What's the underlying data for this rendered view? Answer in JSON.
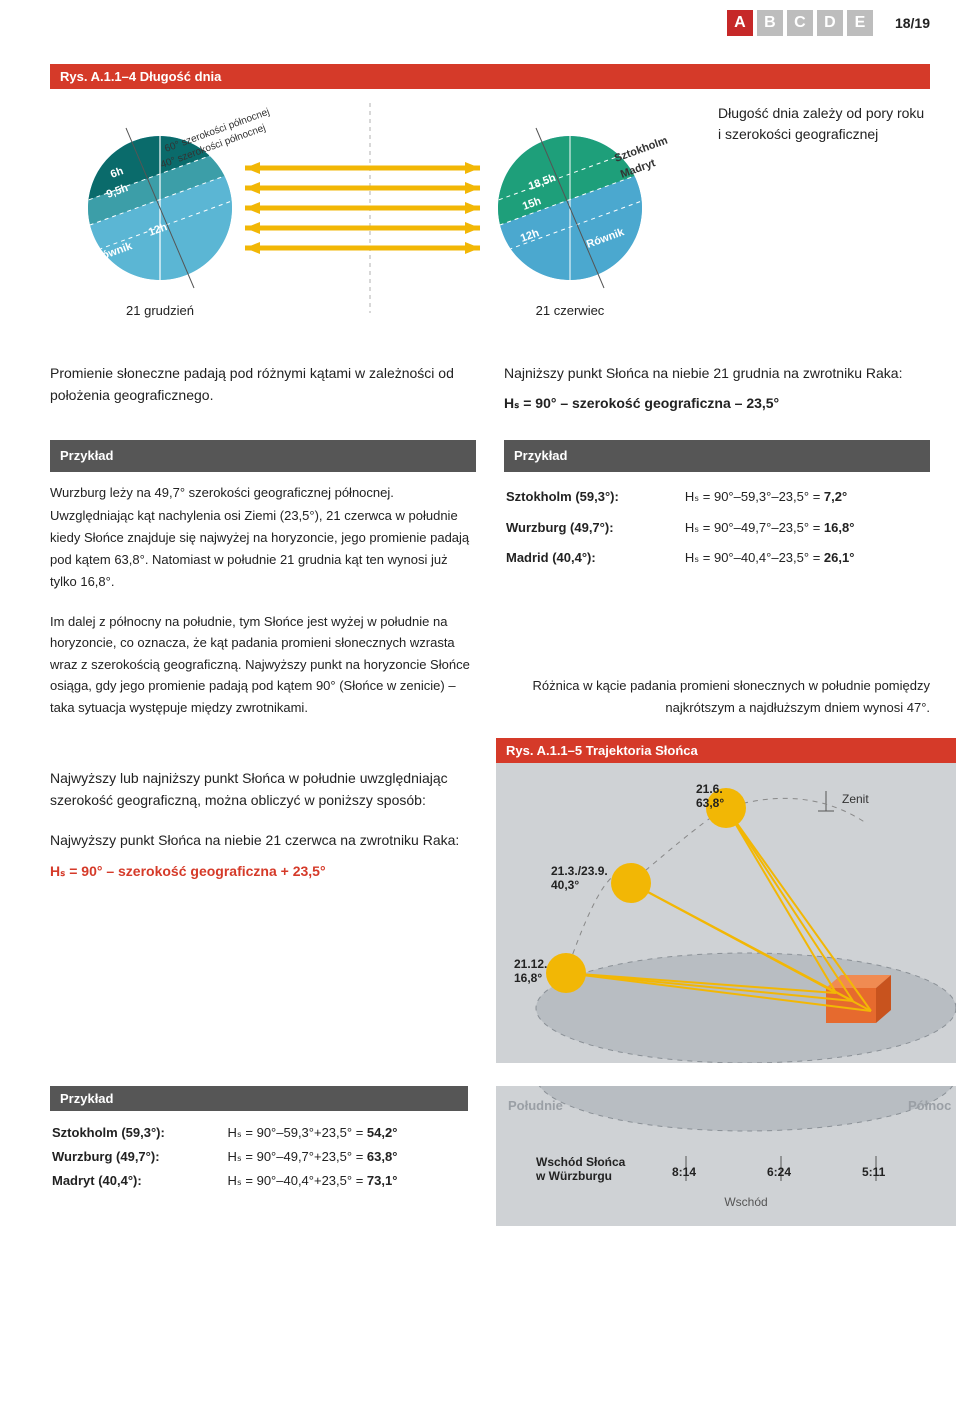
{
  "page": {
    "number": "18/19"
  },
  "tabs": {
    "items": [
      "A",
      "B",
      "C",
      "D",
      "E"
    ],
    "active_bg": "#c62828",
    "inactive_bg": "#bdbdbd"
  },
  "fig1": {
    "header": "Rys. A.1.1–4   Długość dnia",
    "header_bg": "#d53a29",
    "side_text": "Długość dnia zależy od pory roku i szerokości geograficznej",
    "globe_colors": {
      "dark": "#0a6b6b",
      "mid": "#3c9ea8",
      "light": "#5bb6d4",
      "right_top": "#1e9f7a",
      "right_bot": "#4ba8cf"
    },
    "arrow_color": "#f2b705",
    "dash_color": "#b0b0b0",
    "left_globe": {
      "lat1_label": "60° szerokości północnej",
      "lat2_label": "40° szerokości północnej",
      "h1": "6h",
      "h2": "9,5h",
      "h3": "12h",
      "equator": "Równik"
    },
    "right_globe": {
      "city1": "Sztokholm",
      "city2": "Madryt",
      "h1": "18,5h",
      "h2": "15h",
      "h3": "12h",
      "equator": "Równik"
    },
    "caption_left": "21 grudzień",
    "caption_right": "21 czerwiec"
  },
  "intro": {
    "left": "Promienie słoneczne padają pod różnymi kątami w zależności od położenia geograficznego.",
    "right_line1": "Najniższy punkt Słońca na niebie 21 grudnia na zwrotniku Raka:",
    "right_formula": "Hₛ = 90° – szerokość geograficzna – 23,5°"
  },
  "example1": {
    "header": "Przykład",
    "text": "Wurzburg leży na 49,7° szerokości geograficznej północnej. Uwzględniając kąt nachylenia osi Ziemi (23,5°), 21 czerwca w południe kiedy Słońce znajduje się najwyżej na horyzoncie, jego promienie padają pod kątem 63,8°. Natomiast w południe 21 grudnia kąt ten wynosi już tylko 16,8°."
  },
  "example2": {
    "header": "Przykład",
    "rows": [
      {
        "city": "Sztokholm (59,3°):",
        "calc": "Hₛ = 90°–59,3°–23,5° = 7,2°"
      },
      {
        "city": "Wurzburg (49,7°):",
        "calc": "Hₛ = 90°–49,7°–23,5° = 16,8°"
      },
      {
        "city": "Madrid (40,4°):",
        "calc": "Hₛ = 90°–40,4°–23,5° = 26,1°"
      }
    ]
  },
  "followup": {
    "left": "Im dalej z północny na południe, tym Słońce jest wyżej w południe na horyzoncie, co oznacza, że kąt padania promieni słonecznych wzrasta wraz z szerokością geograficzną. Najwyższy punkt na horyzoncie Słońce osiąga, gdy jego promienie padają pod kątem 90° (Słońce w zenicie) – taka sytuacja występuje między zwrotnikami.",
    "right": "Różnica w kącie padania promieni słonecznych w południe pomiędzy najkrótszym a najdłuższym dniem wynosi 47°."
  },
  "fig2": {
    "header": "Rys. A.1.1–5   Trajektoria Słońca",
    "header_bg": "#d53a29",
    "bg": "#cfd2d5",
    "ground": "#b8bdc2",
    "sun_color": "#f2b705",
    "ray_color": "#f2b705",
    "cube_fill": "#e66a2e",
    "cube_top": "#f08b52",
    "cube_side": "#c8531e",
    "labels": {
      "zenit": "Zenit",
      "pos1": "21.6.",
      "pos1_ang": "63,8°",
      "pos2": "21.3./23.9.",
      "pos2_ang": "40,3°",
      "pos3": "21.12.",
      "pos3_ang": "16,8°",
      "south": "Południe",
      "north": "Północ",
      "east": "Wschód",
      "sunrise_label": "Wschód Słońca",
      "sunrise_city": "w Würzburgu",
      "t1": "8:14",
      "t2": "6:24",
      "t3": "5:11"
    }
  },
  "section2": {
    "p1": "Najwyższy lub najniższy punkt Słońca w południe uwzględniając szerokość geograficzną, można obliczyć w poniższy sposób:",
    "p2": "Najwyższy punkt Słońca na niebie 21 czerwca na zwrotniku Raka:",
    "formula": "Hₛ = 90° – szerokość geograficzna + 23,5°",
    "formula_color": "#d53a29"
  },
  "example3": {
    "header": "Przykład",
    "rows": [
      {
        "city": "Sztokholm (59,3°):",
        "calc": "Hₛ = 90°–59,3°+23,5° = 54,2°"
      },
      {
        "city": "Wurzburg (49,7°):",
        "calc": "Hₛ = 90°–49,7°+23,5° = 63,8°"
      },
      {
        "city": "Madryt (40,4°):",
        "calc": "Hₛ = 90°–40,4°+23,5° = 73,1°"
      }
    ]
  }
}
